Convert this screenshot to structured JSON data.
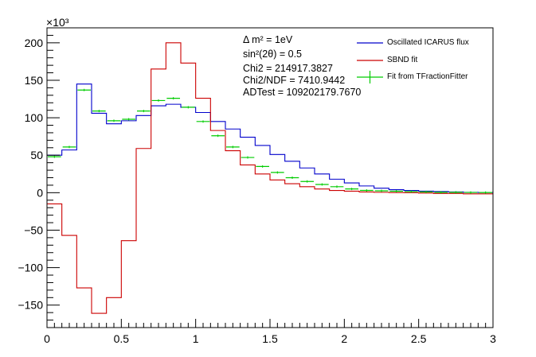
{
  "colors": {
    "oscillated": "#0000cc",
    "sbnd": "#cc0000",
    "fit": "#00cc00",
    "axis": "#000000",
    "background": "#ffffff"
  },
  "info_box": {
    "line1": "Δ m² = 1eV",
    "line2": "sin²(2θ) = 0.5",
    "line3": "Chi2 = 214917.3827",
    "line4": "Chi2/NDF = 7410.9442",
    "line5": "ADTest = 109202179.7670"
  },
  "chart_data": {
    "type": "line",
    "title": "",
    "xlabel": "",
    "ylabel": "",
    "y_exponent_label": "×10³",
    "xlim": [
      0,
      3
    ],
    "ylim": [
      -180,
      220
    ],
    "x_ticks": [
      0,
      0.5,
      1,
      1.5,
      2,
      2.5,
      3
    ],
    "x_tick_labels": [
      "0",
      "0.5",
      "1",
      "1.5",
      "2",
      "2.5",
      "3"
    ],
    "y_ticks": [
      -150,
      -100,
      -50,
      0,
      50,
      100,
      150,
      200
    ],
    "y_tick_labels": [
      "−150",
      "−100",
      "−50",
      "0",
      "50",
      "100",
      "150",
      "200"
    ],
    "grid": false,
    "legend_position": "top-right",
    "bin_edges": [
      0,
      0.1,
      0.2,
      0.3,
      0.4,
      0.5,
      0.6,
      0.7,
      0.8,
      0.9,
      1.0,
      1.1,
      1.2,
      1.3,
      1.4,
      1.5,
      1.6,
      1.7,
      1.8,
      1.9,
      2.0,
      2.1,
      2.2,
      2.3,
      2.4,
      2.5,
      2.6,
      2.7,
      2.8,
      2.9,
      3.0
    ],
    "series": [
      {
        "name": "Oscillated ICARUS flux",
        "style": "histogram",
        "values": [
          50,
          57,
          145,
          106,
          92,
          96,
          103,
          116,
          118,
          114,
          107,
          95,
          85,
          74,
          63,
          51,
          42,
          33,
          25,
          18,
          13,
          9,
          6,
          4,
          3,
          2,
          1.5,
          1,
          0.5,
          0.3
        ]
      },
      {
        "name": "SBND fit",
        "style": "histogram",
        "values": [
          -15,
          -57,
          -127,
          -161,
          -140,
          -64,
          59,
          165,
          200,
          173,
          126,
          83,
          56,
          37,
          25,
          17,
          12,
          8,
          5,
          3,
          2,
          1,
          0.5,
          0.2,
          0,
          -0.5,
          -1,
          -1,
          -1.5,
          -1.5
        ]
      },
      {
        "name": "Fit from TFractionFitter",
        "style": "markers",
        "values": [
          48,
          61,
          137,
          109,
          96,
          98,
          109,
          123,
          126,
          114,
          95,
          76,
          61,
          47,
          35,
          27,
          20,
          15,
          11,
          8,
          5,
          3,
          2.5,
          2,
          1.5,
          1,
          0.5,
          0.5,
          0.3,
          0.2
        ]
      }
    ]
  }
}
